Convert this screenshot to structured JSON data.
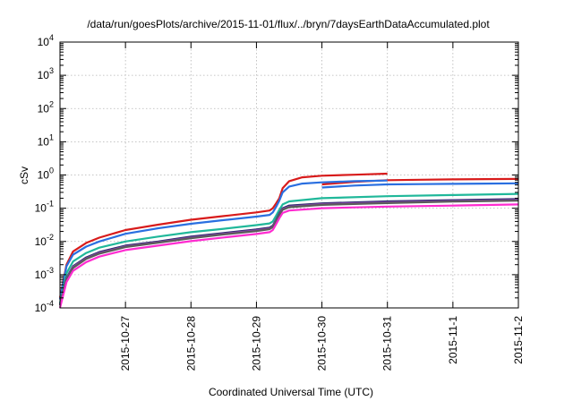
{
  "chart_data": {
    "type": "line",
    "title": "/data/run/goesPlots/archive/2015-11-01/flux/../bryn/7daysEarthDataAccumulated.plot",
    "xlabel": "Coordinated Universal Time (UTC)",
    "ylabel": "cSv",
    "yscale": "log",
    "ylim": [
      0.0001,
      10000
    ],
    "xlim": [
      "2015-10-26 00:00",
      "2015-11-02 00:00"
    ],
    "grid": true,
    "y_ticks": [
      {
        "value": 0.0001,
        "base": "10",
        "exp": "-4"
      },
      {
        "value": 0.001,
        "base": "10",
        "exp": "-3"
      },
      {
        "value": 0.01,
        "base": "10",
        "exp": "-2"
      },
      {
        "value": 0.1,
        "base": "10",
        "exp": "-1"
      },
      {
        "value": 1,
        "base": "10",
        "exp": "0"
      },
      {
        "value": 10,
        "base": "10",
        "exp": "1"
      },
      {
        "value": 100,
        "base": "10",
        "exp": "2"
      },
      {
        "value": 1000,
        "base": "10",
        "exp": "3"
      },
      {
        "value": 10000,
        "base": "10",
        "exp": "4"
      }
    ],
    "x_ticks": [
      {
        "value": "2015-10-27 00:00",
        "label": "2015-10-27"
      },
      {
        "value": "2015-10-28 00:00",
        "label": "2015-10-28"
      },
      {
        "value": "2015-10-29 00:00",
        "label": "2015-10-29"
      },
      {
        "value": "2015-10-30 00:00",
        "label": "2015-10-30"
      },
      {
        "value": "2015-10-31 00:00",
        "label": "2015-10-31"
      },
      {
        "value": "2015-11-01 00:00",
        "label": "2015-11-1"
      },
      {
        "value": "2015-11-02 00:00",
        "label": "2015-11-2"
      }
    ],
    "series": [
      {
        "color": "#d81b1b",
        "segments": [
          [
            [
              "2015-10-26 00:00",
              0.0002
            ],
            [
              "2015-10-26 02:24",
              0.002
            ],
            [
              "2015-10-26 04:48",
              0.005
            ],
            [
              "2015-10-26 09:36",
              0.009
            ],
            [
              "2015-10-26 14:24",
              0.013
            ],
            [
              "2015-10-27 00:00",
              0.022
            ],
            [
              "2015-10-27 12:00",
              0.032
            ],
            [
              "2015-10-28 00:00",
              0.045
            ],
            [
              "2015-10-28 12:00",
              0.058
            ],
            [
              "2015-10-29 00:00",
              0.075
            ],
            [
              "2015-10-29 04:48",
              0.085
            ],
            [
              "2015-10-29 06:00",
              0.1
            ],
            [
              "2015-10-29 07:12",
              0.14
            ],
            [
              "2015-10-29 08:24",
              0.2
            ],
            [
              "2015-10-29 09:36",
              0.4
            ],
            [
              "2015-10-29 12:00",
              0.65
            ],
            [
              "2015-10-29 16:48",
              0.85
            ],
            [
              "2015-10-30 00:00",
              0.95
            ],
            [
              "2015-10-30 12:00",
              1.02
            ],
            [
              "2015-10-31 00:00",
              1.1
            ]
          ],
          [
            [
              "2015-10-30 00:00",
              0.52
            ],
            [
              "2015-10-30 12:00",
              0.62
            ],
            [
              "2015-10-31 00:00",
              0.7
            ],
            [
              "2015-10-31 12:00",
              0.72
            ],
            [
              "2015-11-01 00:00",
              0.74
            ],
            [
              "2015-11-01 12:00",
              0.75
            ],
            [
              "2015-11-02 00:00",
              0.76
            ]
          ]
        ]
      },
      {
        "color": "#2a6fe0",
        "segments": [
          [
            [
              "2015-10-26 00:00",
              0.00018
            ],
            [
              "2015-10-26 02:24",
              0.0018
            ],
            [
              "2015-10-26 04:48",
              0.004
            ],
            [
              "2015-10-26 09:36",
              0.007
            ],
            [
              "2015-10-26 14:24",
              0.01
            ],
            [
              "2015-10-27 00:00",
              0.017
            ],
            [
              "2015-10-27 12:00",
              0.025
            ],
            [
              "2015-10-28 00:00",
              0.034
            ],
            [
              "2015-10-28 12:00",
              0.044
            ],
            [
              "2015-10-29 00:00",
              0.056
            ],
            [
              "2015-10-29 04:48",
              0.063
            ],
            [
              "2015-10-29 06:00",
              0.075
            ],
            [
              "2015-10-29 07:12",
              0.11
            ],
            [
              "2015-10-29 08:24",
              0.17
            ],
            [
              "2015-10-29 09:36",
              0.3
            ],
            [
              "2015-10-29 12:00",
              0.45
            ],
            [
              "2015-10-29 16:48",
              0.55
            ],
            [
              "2015-10-30 00:00",
              0.6
            ],
            [
              "2015-10-30 12:00",
              0.65
            ],
            [
              "2015-10-31 00:00",
              0.68
            ]
          ],
          [
            [
              "2015-10-30 00:00",
              0.42
            ],
            [
              "2015-10-30 12:00",
              0.48
            ],
            [
              "2015-10-31 00:00",
              0.52
            ],
            [
              "2015-10-31 12:00",
              0.53
            ],
            [
              "2015-11-01 00:00",
              0.54
            ],
            [
              "2015-11-01 12:00",
              0.55
            ],
            [
              "2015-11-02 00:00",
              0.56
            ]
          ]
        ]
      },
      {
        "color": "#20b89a",
        "segments": [
          [
            [
              "2015-10-26 00:00",
              0.00014
            ],
            [
              "2015-10-26 02:24",
              0.0011
            ],
            [
              "2015-10-26 04:48",
              0.0025
            ],
            [
              "2015-10-26 09:36",
              0.0045
            ],
            [
              "2015-10-26 14:24",
              0.0065
            ],
            [
              "2015-10-27 00:00",
              0.01
            ],
            [
              "2015-10-27 12:00",
              0.014
            ],
            [
              "2015-10-28 00:00",
              0.019
            ],
            [
              "2015-10-28 12:00",
              0.024
            ],
            [
              "2015-10-29 00:00",
              0.031
            ],
            [
              "2015-10-29 04:48",
              0.035
            ],
            [
              "2015-10-29 06:00",
              0.04
            ],
            [
              "2015-10-29 07:12",
              0.06
            ],
            [
              "2015-10-29 08:24",
              0.09
            ],
            [
              "2015-10-29 09:36",
              0.13
            ],
            [
              "2015-10-29 12:00",
              0.16
            ],
            [
              "2015-10-30 00:00",
              0.2
            ],
            [
              "2015-10-31 00:00",
              0.23
            ],
            [
              "2015-11-01 00:00",
              0.25
            ],
            [
              "2015-11-02 00:00",
              0.27
            ]
          ]
        ]
      },
      {
        "color": "#2b2b6b",
        "segments": [
          [
            [
              "2015-10-26 00:00",
              0.00013
            ],
            [
              "2015-10-26 02:24",
              0.0008
            ],
            [
              "2015-10-26 04:48",
              0.0018
            ],
            [
              "2015-10-26 09:36",
              0.0033
            ],
            [
              "2015-10-26 14:24",
              0.0048
            ],
            [
              "2015-10-27 00:00",
              0.0075
            ],
            [
              "2015-10-27 12:00",
              0.01
            ],
            [
              "2015-10-28 00:00",
              0.014
            ],
            [
              "2015-10-28 12:00",
              0.018
            ],
            [
              "2015-10-29 00:00",
              0.023
            ],
            [
              "2015-10-29 04:48",
              0.026
            ],
            [
              "2015-10-29 06:00",
              0.03
            ],
            [
              "2015-10-29 07:12",
              0.045
            ],
            [
              "2015-10-29 08:24",
              0.07
            ],
            [
              "2015-10-29 09:36",
              0.1
            ],
            [
              "2015-10-29 12:00",
              0.12
            ],
            [
              "2015-10-30 00:00",
              0.14
            ],
            [
              "2015-10-31 00:00",
              0.16
            ],
            [
              "2015-11-01 00:00",
              0.175
            ],
            [
              "2015-11-02 00:00",
              0.19
            ]
          ]
        ]
      },
      {
        "color": "#8e44ad",
        "segments": [
          [
            [
              "2015-10-26 00:00",
              0.00012
            ],
            [
              "2015-10-26 02:24",
              0.00075
            ],
            [
              "2015-10-26 04:48",
              0.0017
            ],
            [
              "2015-10-26 09:36",
              0.0031
            ],
            [
              "2015-10-26 14:24",
              0.0045
            ],
            [
              "2015-10-27 00:00",
              0.0071
            ],
            [
              "2015-10-27 12:00",
              0.0095
            ],
            [
              "2015-10-28 00:00",
              0.013
            ],
            [
              "2015-10-28 12:00",
              0.017
            ],
            [
              "2015-10-29 00:00",
              0.0215
            ],
            [
              "2015-10-29 04:48",
              0.0245
            ],
            [
              "2015-10-29 06:00",
              0.028
            ],
            [
              "2015-10-29 07:12",
              0.042
            ],
            [
              "2015-10-29 08:24",
              0.065
            ],
            [
              "2015-10-29 09:36",
              0.095
            ],
            [
              "2015-10-29 12:00",
              0.112
            ],
            [
              "2015-10-30 00:00",
              0.132
            ],
            [
              "2015-10-31 00:00",
              0.15
            ],
            [
              "2015-11-01 00:00",
              0.165
            ],
            [
              "2015-11-02 00:00",
              0.178
            ]
          ]
        ]
      },
      {
        "color": "#5a5a5a",
        "segments": [
          [
            [
              "2015-10-26 00:00",
              0.00012
            ],
            [
              "2015-10-26 02:24",
              0.0007
            ],
            [
              "2015-10-26 04:48",
              0.0016
            ],
            [
              "2015-10-26 09:36",
              0.003
            ],
            [
              "2015-10-26 14:24",
              0.0043
            ],
            [
              "2015-10-27 00:00",
              0.0068
            ],
            [
              "2015-10-27 12:00",
              0.0092
            ],
            [
              "2015-10-28 00:00",
              0.0125
            ],
            [
              "2015-10-28 12:00",
              0.0163
            ],
            [
              "2015-10-29 00:00",
              0.0205
            ],
            [
              "2015-10-29 04:48",
              0.0235
            ],
            [
              "2015-10-29 06:00",
              0.027
            ],
            [
              "2015-10-29 07:12",
              0.04
            ],
            [
              "2015-10-29 08:24",
              0.062
            ],
            [
              "2015-10-29 09:36",
              0.09
            ],
            [
              "2015-10-29 12:00",
              0.107
            ],
            [
              "2015-10-30 00:00",
              0.126
            ],
            [
              "2015-10-31 00:00",
              0.143
            ],
            [
              "2015-11-01 00:00",
              0.158
            ],
            [
              "2015-11-02 00:00",
              0.17
            ]
          ]
        ]
      },
      {
        "color": "#ff2bd0",
        "segments": [
          [
            [
              "2015-10-26 00:00",
              0.0001
            ],
            [
              "2015-10-26 02:24",
              0.0006
            ],
            [
              "2015-10-26 04:48",
              0.0013
            ],
            [
              "2015-10-26 09:36",
              0.0024
            ],
            [
              "2015-10-26 14:24",
              0.0035
            ],
            [
              "2015-10-27 00:00",
              0.0055
            ],
            [
              "2015-10-27 12:00",
              0.0075
            ],
            [
              "2015-10-28 00:00",
              0.0102
            ],
            [
              "2015-10-28 12:00",
              0.0132
            ],
            [
              "2015-10-29 00:00",
              0.0168
            ],
            [
              "2015-10-29 04:48",
              0.019
            ],
            [
              "2015-10-29 06:00",
              0.022
            ],
            [
              "2015-10-29 07:12",
              0.033
            ],
            [
              "2015-10-29 08:24",
              0.05
            ],
            [
              "2015-10-29 09:36",
              0.072
            ],
            [
              "2015-10-29 12:00",
              0.085
            ],
            [
              "2015-10-30 00:00",
              0.1
            ],
            [
              "2015-10-31 00:00",
              0.112
            ],
            [
              "2015-11-01 00:00",
              0.12
            ],
            [
              "2015-11-02 00:00",
              0.13
            ]
          ]
        ]
      }
    ]
  }
}
